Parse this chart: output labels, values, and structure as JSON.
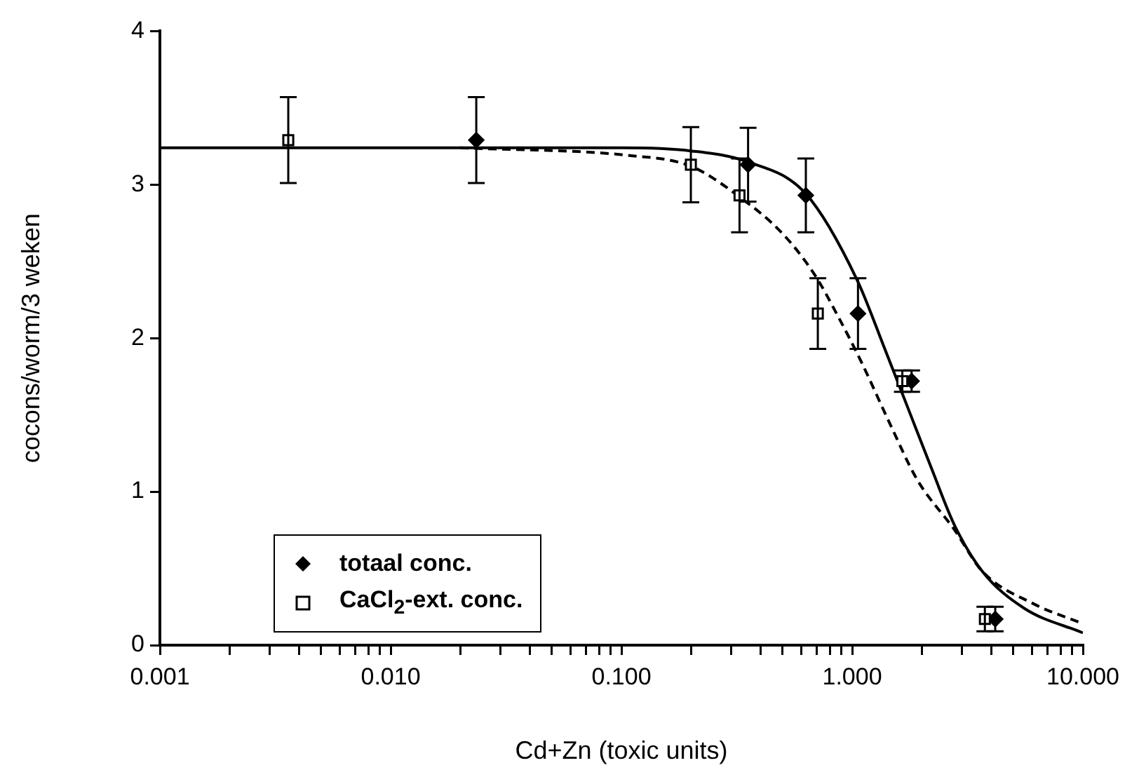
{
  "chart_data": {
    "type": "scatter",
    "xlabel": "Cd+Zn (toxic units)",
    "ylabel": "cocons/worm/3 weken",
    "log": "x",
    "grid": false,
    "legend": "bottom left",
    "xlim": [
      0.001,
      10
    ],
    "ylim": [
      0,
      4
    ],
    "xticks": [
      {
        "value": 0.001,
        "label": "0.001"
      },
      {
        "value": 0.002,
        "label": null
      },
      {
        "value": 0.003,
        "label": null
      },
      {
        "value": 0.004,
        "label": null
      },
      {
        "value": 0.005,
        "label": null
      },
      {
        "value": 0.006,
        "label": null
      },
      {
        "value": 0.007,
        "label": null
      },
      {
        "value": 0.008,
        "label": null
      },
      {
        "value": 0.009,
        "label": null
      },
      {
        "value": 0.01,
        "label": "0.010"
      },
      {
        "value": 0.02,
        "label": null
      },
      {
        "value": 0.03,
        "label": null
      },
      {
        "value": 0.04,
        "label": null
      },
      {
        "value": 0.05,
        "label": null
      },
      {
        "value": 0.06,
        "label": null
      },
      {
        "value": 0.07,
        "label": null
      },
      {
        "value": 0.08,
        "label": null
      },
      {
        "value": 0.09,
        "label": null
      },
      {
        "value": 0.1,
        "label": "0.100"
      },
      {
        "value": 0.2,
        "label": null
      },
      {
        "value": 0.3,
        "label": null
      },
      {
        "value": 0.4,
        "label": null
      },
      {
        "value": 0.5,
        "label": null
      },
      {
        "value": 0.6,
        "label": null
      },
      {
        "value": 0.7,
        "label": null
      },
      {
        "value": 0.8,
        "label": null
      },
      {
        "value": 0.9,
        "label": null
      },
      {
        "value": 1,
        "label": "1.000"
      },
      {
        "value": 2,
        "label": null
      },
      {
        "value": 3,
        "label": null
      },
      {
        "value": 4,
        "label": null
      },
      {
        "value": 5,
        "label": null
      },
      {
        "value": 6,
        "label": null
      },
      {
        "value": 7,
        "label": null
      },
      {
        "value": 8,
        "label": null
      },
      {
        "value": 9,
        "label": null
      },
      {
        "value": 10,
        "label": "10.000"
      }
    ],
    "yticks": [
      0,
      1,
      2,
      3,
      4
    ],
    "series": [
      {
        "type": "line",
        "color": "#000000",
        "marker": "none",
        "line_style": "solid",
        "x": [
          0.001,
          0.1,
          0.2,
          0.35,
          0.63,
          1.05,
          1.385,
          1.75,
          2.21,
          2.78,
          3.67,
          5.57,
          10
        ],
        "values": [
          3.24,
          3.24,
          3.22,
          3.15,
          2.94,
          2.38,
          1.93,
          1.54,
          1.15,
          0.78,
          0.48,
          0.24,
          0.08
        ]
      },
      {
        "type": "line",
        "color": "#000000",
        "marker": "none",
        "line_style": "dashed",
        "x": [
          0.02,
          0.108,
          0.2,
          0.325,
          0.5,
          0.69,
          0.87,
          1.1,
          1.45,
          1.91,
          2.78,
          3.67,
          6.1,
          10
        ],
        "values": [
          3.24,
          3.19,
          3.12,
          2.92,
          2.68,
          2.41,
          2.14,
          1.84,
          1.45,
          1.08,
          0.75,
          0.48,
          0.27,
          0.14
        ]
      },
      {
        "name": "totaal conc.",
        "color": "#000000",
        "marker": "diamond",
        "x": [
          0.0235,
          0.354,
          0.63,
          1.06,
          1.81,
          4.17
        ],
        "values": [
          3.29,
          3.13,
          2.93,
          2.16,
          1.72,
          0.17
        ],
        "errors": [
          0.28,
          0.24,
          0.24,
          0.23,
          0.07,
          0.08
        ]
      },
      {
        "name": "CaCl$_{2}$-ext. conc.",
        "color": "#000000",
        "marker": "square",
        "x": [
          0.0036,
          0.2,
          0.325,
          0.71,
          1.65,
          3.76
        ],
        "values": [
          3.29,
          3.13,
          2.93,
          2.16,
          1.72,
          0.17
        ],
        "errors": [
          0.28,
          0.245,
          0.24,
          0.23,
          0.07,
          0.08
        ]
      }
    ]
  }
}
